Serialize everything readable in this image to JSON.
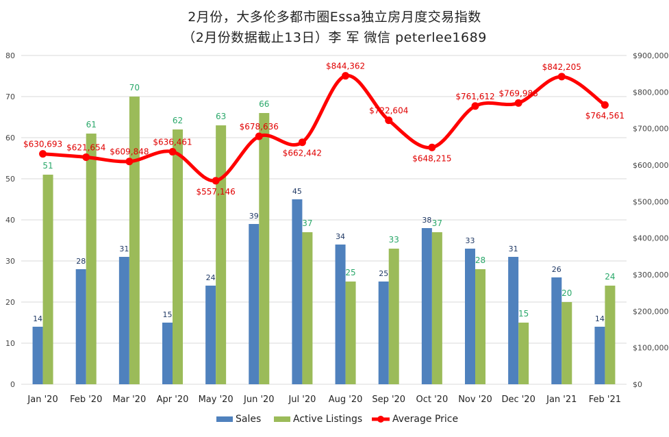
{
  "chart_data": {
    "type": "bar",
    "title": "2月份，大多伦多都市圈Essa独立房月度交易指数",
    "subtitle": "（2月份数据截止13日）李 军  微信  peterlee1689",
    "categories": [
      "Jan '20",
      "Feb '20",
      "Mar '20",
      "Apr '20",
      "May '20",
      "Jun '20",
      "Jul '20",
      "Aug '20",
      "Sep '20",
      "Oct '20",
      "Nov '20",
      "Dec '20",
      "Jan '21",
      "Feb '21"
    ],
    "series": [
      {
        "name": "Sales",
        "type": "bar",
        "axis": "left",
        "color": "#4f81bd",
        "values": [
          14,
          28,
          31,
          15,
          24,
          39,
          45,
          34,
          25,
          38,
          33,
          31,
          26,
          14
        ]
      },
      {
        "name": "Active Listings",
        "type": "bar",
        "axis": "left",
        "color": "#9bbb59",
        "values": [
          51,
          61,
          70,
          62,
          63,
          66,
          37,
          25,
          33,
          37,
          28,
          15,
          20,
          24
        ]
      },
      {
        "name": "Average Price",
        "type": "line",
        "axis": "right",
        "color": "#ff0000",
        "values": [
          630693,
          621654,
          609848,
          636461,
          557146,
          678636,
          662442,
          844362,
          722604,
          648215,
          761612,
          769988,
          842205,
          764561
        ],
        "labels": [
          "$630,693",
          "$621,654",
          "$609,848",
          "$636,461",
          "$557,146",
          "$678,636",
          "$662,442",
          "$844,362",
          "$722,604",
          "$648,215",
          "$761,612",
          "$769,988",
          "$842,205",
          "$764,561"
        ]
      }
    ],
    "left_axis": {
      "ylim": [
        0,
        80
      ],
      "ticks": [
        "0",
        "10",
        "20",
        "30",
        "40",
        "50",
        "60",
        "70",
        "80"
      ]
    },
    "right_axis": {
      "ylim": [
        0,
        900000
      ],
      "ticks": [
        "$0",
        "$100,000",
        "$200,000",
        "$300,000",
        "$400,000",
        "$500,000",
        "$600,000",
        "$700,000",
        "$800,000",
        "$900,000"
      ]
    },
    "grid": true,
    "legend_position": "bottom"
  }
}
